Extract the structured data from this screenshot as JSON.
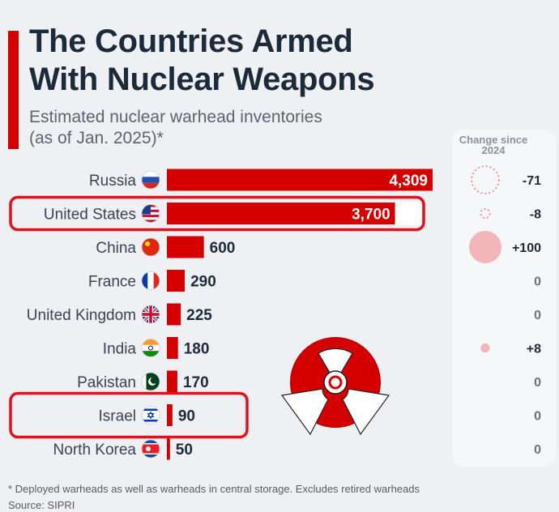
{
  "title": "The Countries Armed\nWith Nuclear Weapons",
  "subtitle": "Estimated nuclear warhead inventories\n(as of Jan. 2025)*",
  "change_header": "Change since\n2024",
  "footnote": "* Deployed warheads as well as warheads in central storage. Excludes retired warheads",
  "source": "Source: SIPRI",
  "colors": {
    "bar": "#d40000",
    "highlight": "#e3111b",
    "bubble_negative": "#e88a94",
    "bubble_positive": "#f2b5ba",
    "accent": "#d40000"
  },
  "chart_data": {
    "type": "bar",
    "orientation": "horizontal",
    "title": "The Countries Armed With Nuclear Weapons",
    "subtitle": "Estimated nuclear warhead inventories (as of Jan. 2025)*",
    "categories": [
      "Russia",
      "United States",
      "China",
      "France",
      "United Kingdom",
      "India",
      "Pakistan",
      "Israel",
      "North Korea"
    ],
    "values": [
      4309,
      3700,
      600,
      290,
      225,
      180,
      170,
      90,
      50
    ],
    "value_labels": [
      "4,309",
      "3,700",
      "600",
      "290",
      "225",
      "180",
      "170",
      "90",
      "50"
    ],
    "change_since_2024": [
      -71,
      -8,
      100,
      0,
      0,
      8,
      0,
      0,
      0
    ],
    "change_labels": [
      "-71",
      "-8",
      "+100",
      "0",
      "0",
      "+8",
      "0",
      "0",
      "0"
    ],
    "flag_icons": [
      "flag-russia-icon",
      "flag-usa-icon",
      "flag-china-icon",
      "flag-france-icon",
      "flag-uk-icon",
      "flag-india-icon",
      "flag-pakistan-icon",
      "flag-israel-icon",
      "flag-north-korea-icon"
    ],
    "highlighted": [
      "United States",
      "Israel"
    ],
    "xlim": [
      0,
      4309
    ]
  }
}
